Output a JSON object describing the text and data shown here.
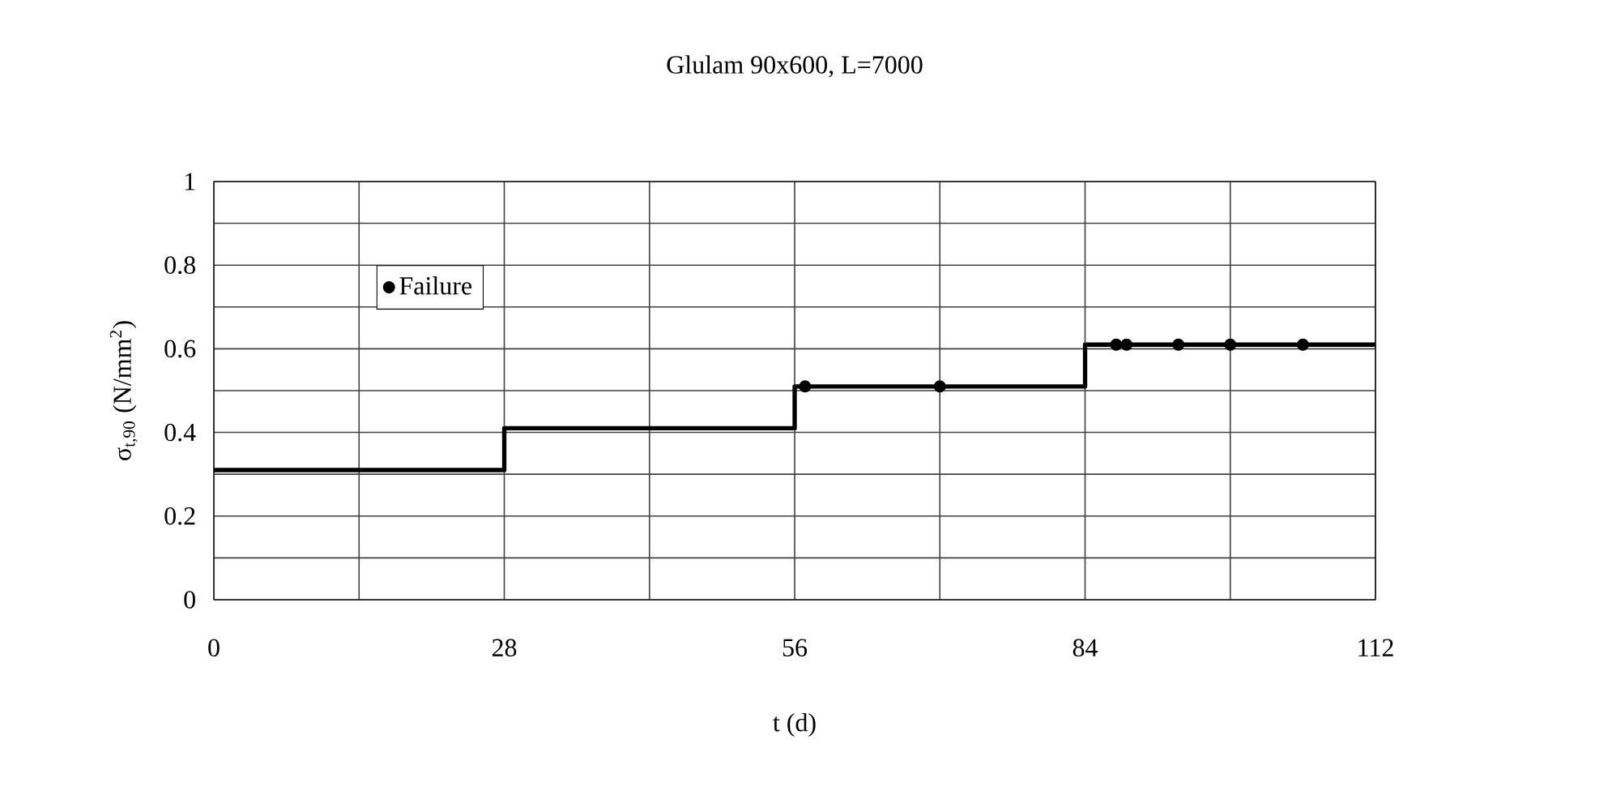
{
  "chart_data": {
    "type": "step",
    "title": "Glulam 90x600, L=7000",
    "xlabel": "t (d)",
    "ylabel": "σ$_{t,90}$ (N/mm$^{2}$)",
    "xlim": [
      0,
      112
    ],
    "ylim": [
      0,
      1
    ],
    "xticks": [
      0,
      {
        "value": 14,
        "label": null
      },
      28,
      {
        "value": 42,
        "label": null
      },
      56,
      {
        "value": 70,
        "label": null
      },
      84,
      {
        "value": 98,
        "label": null
      },
      112
    ],
    "yticks": [
      0,
      {
        "value": 0.1,
        "label": null
      },
      0.2,
      {
        "value": 0.3,
        "label": null
      },
      0.4,
      {
        "value": 0.5,
        "label": null
      },
      0.6,
      {
        "value": 0.7,
        "label": null
      },
      0.8,
      {
        "value": 0.9,
        "label": null
      },
      1
    ],
    "grid": true,
    "legend": "top left",
    "series": [
      {
        "color": "#000000",
        "x": [
          0,
          28,
          56,
          84,
          112
        ],
        "values": [
          0.31,
          0.41,
          0.51,
          0.61,
          0.61
        ],
        "marker": "none"
      },
      {
        "type": "scatter",
        "name": "Failure",
        "color": "#000000",
        "marker": "circle",
        "x": [
          57,
          70,
          87,
          88,
          93,
          98,
          105
        ],
        "values": [
          0.51,
          0.51,
          0.61,
          0.61,
          0.61,
          0.61,
          0.61
        ]
      }
    ]
  }
}
